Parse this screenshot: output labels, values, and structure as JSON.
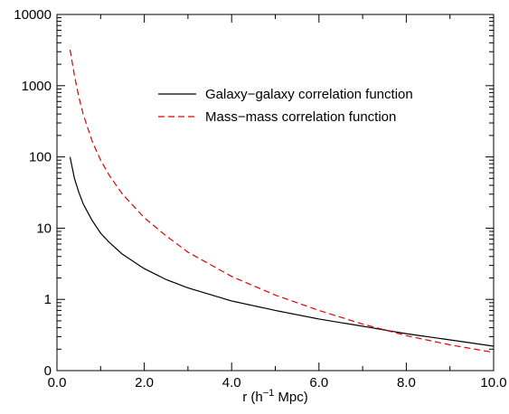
{
  "chart_data": {
    "type": "line",
    "xlabel": "r (h",
    "xlabel_sup": "−1",
    "xlabel_tail": " Mpc)",
    "ylabel": "",
    "xlim": [
      0,
      10
    ],
    "ylim": [
      0.1,
      10000
    ],
    "yscale": "log",
    "grid": false,
    "legend_position": "top-right",
    "x_ticks": [
      {
        "value": 0,
        "label": "0.0"
      },
      {
        "value": 2,
        "label": "2.0"
      },
      {
        "value": 4,
        "label": "4.0"
      },
      {
        "value": 6,
        "label": "6.0"
      },
      {
        "value": 8,
        "label": "8.0"
      },
      {
        "value": 10,
        "label": "10.0"
      }
    ],
    "y_ticks": [
      {
        "value": 0.1,
        "label": "0"
      },
      {
        "value": 1,
        "label": "1"
      },
      {
        "value": 10,
        "label": "10"
      },
      {
        "value": 100,
        "label": "100"
      },
      {
        "value": 1000,
        "label": "1000"
      },
      {
        "value": 10000,
        "label": "10000"
      }
    ],
    "series": [
      {
        "name": "Galaxy−galaxy correlation function",
        "color": "#000000",
        "dash": "solid",
        "x": [
          0.3,
          0.4,
          0.5,
          0.6,
          0.8,
          1.0,
          1.2,
          1.5,
          2.0,
          2.5,
          3.0,
          4.0,
          5.0,
          6.0,
          7.0,
          8.0,
          9.0,
          10.0
        ],
        "y": [
          100,
          50,
          32,
          22,
          13,
          8.5,
          6.3,
          4.3,
          2.7,
          1.9,
          1.45,
          0.95,
          0.7,
          0.53,
          0.42,
          0.33,
          0.27,
          0.22
        ]
      },
      {
        "name": "Mass−mass correlation function",
        "color": "#e00000",
        "dash": "dashed",
        "x": [
          0.3,
          0.4,
          0.5,
          0.6,
          0.8,
          1.0,
          1.2,
          1.5,
          2.0,
          2.5,
          3.0,
          4.0,
          5.0,
          6.0,
          7.0,
          8.0,
          9.0,
          10.0
        ],
        "y": [
          3200,
          1400,
          700,
          400,
          170,
          90,
          55,
          30,
          14,
          7.8,
          4.6,
          2.1,
          1.15,
          0.7,
          0.45,
          0.31,
          0.23,
          0.18
        ]
      }
    ]
  }
}
